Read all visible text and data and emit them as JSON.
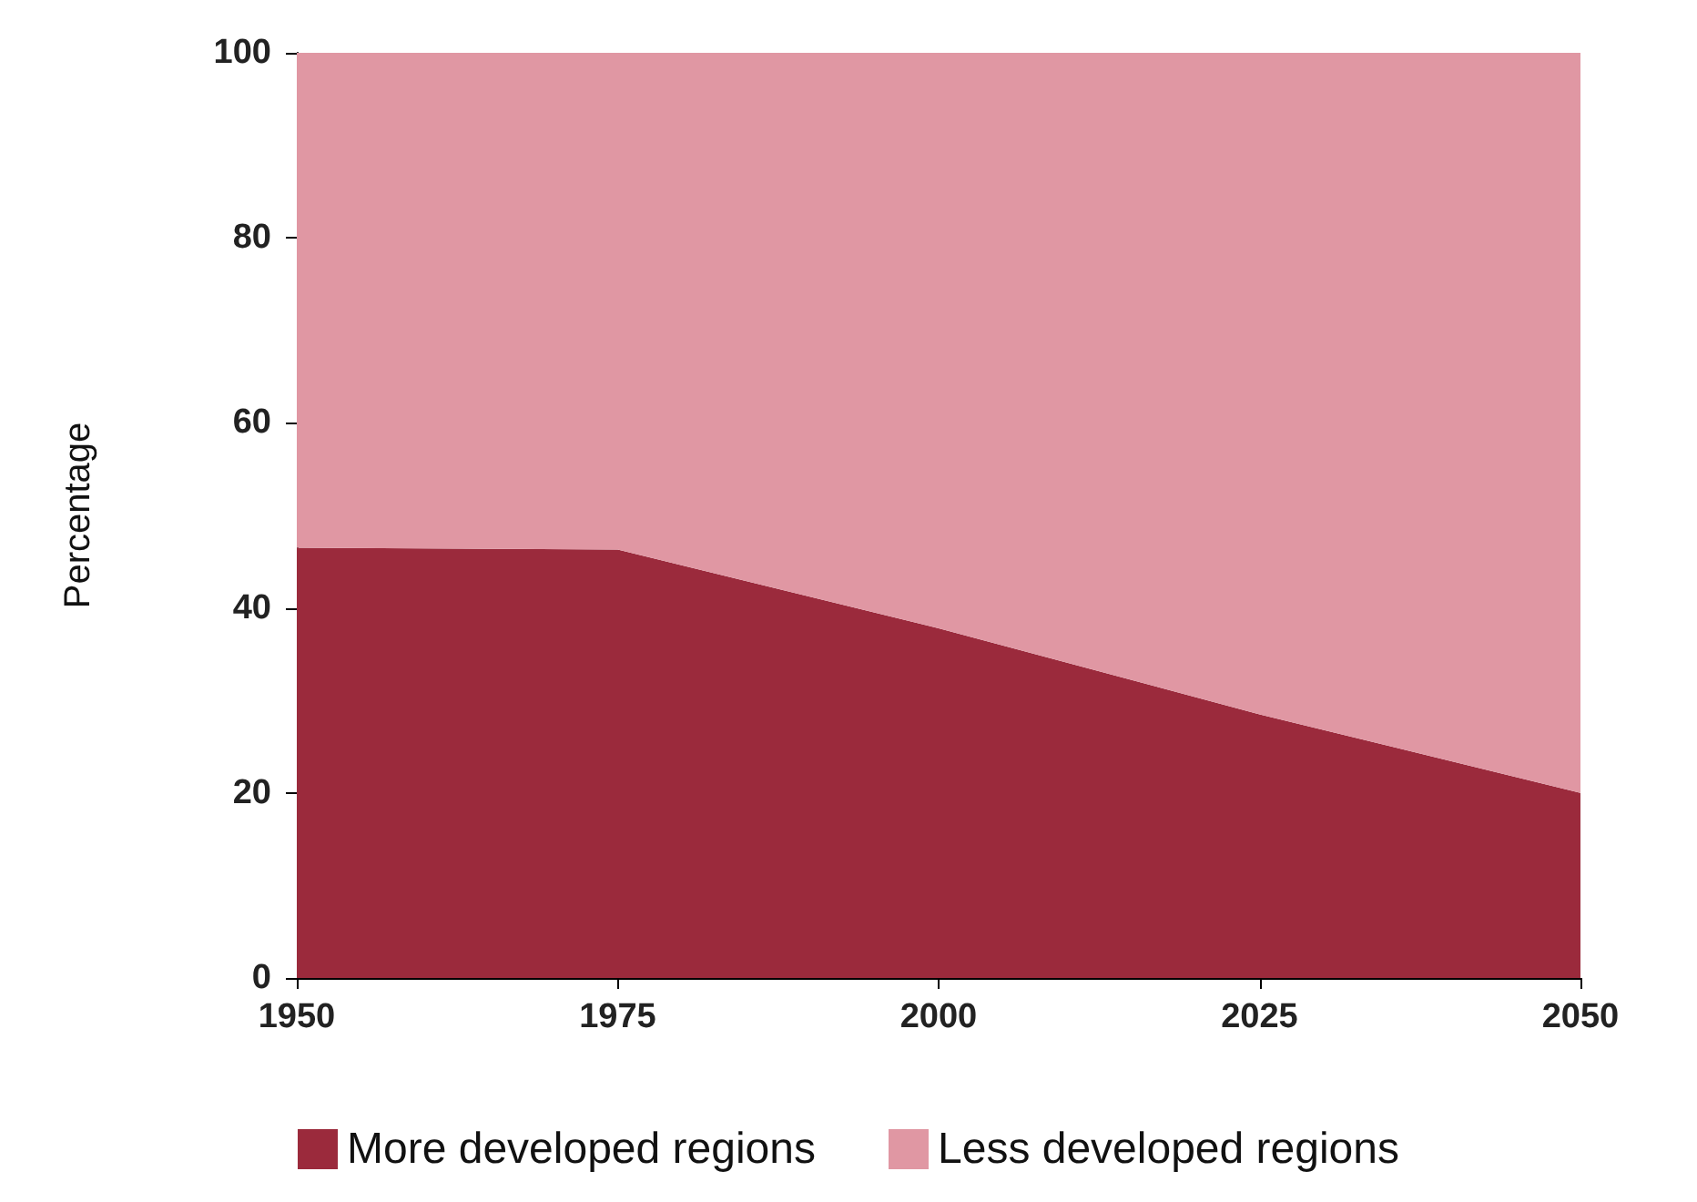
{
  "chart_data": {
    "type": "area",
    "stacked": true,
    "ylabel": "Percentage",
    "x": [
      1950,
      1975,
      2000,
      2025,
      2050
    ],
    "series": [
      {
        "name": "More developed regions",
        "color": "#9b2a3c",
        "values": [
          46.5,
          46.3,
          37.8,
          28.5,
          20
        ]
      },
      {
        "name": "Less developed regions",
        "color": "#e097a3",
        "values": [
          53.5,
          53.7,
          62.2,
          71.5,
          80
        ]
      }
    ],
    "xlim": [
      1950,
      2050
    ],
    "xticks": [
      1950,
      1975,
      2000,
      2025,
      2050
    ],
    "ylim": [
      0,
      100
    ],
    "yticks": [
      0,
      20,
      40,
      60,
      80,
      100
    ],
    "grid": false,
    "legend": "bottom"
  }
}
